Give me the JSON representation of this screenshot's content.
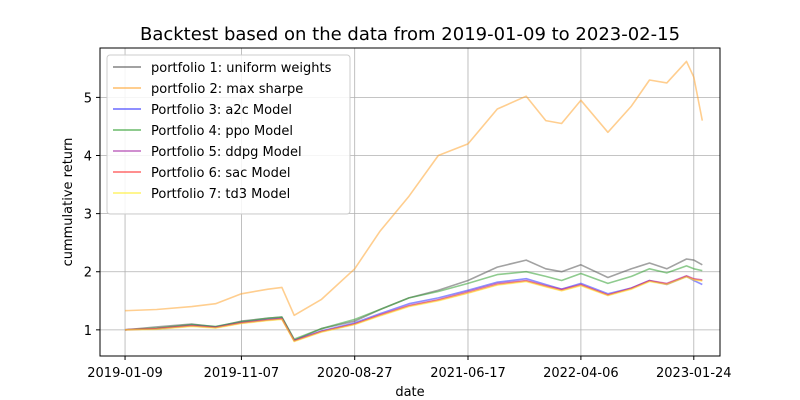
{
  "chart_data": {
    "type": "line",
    "title": "Backtest based on the data from 2019-01-09  to  2023-02-15",
    "xlabel": "date",
    "ylabel": "cummulative return",
    "x_ticks": [
      "2019-01-09",
      "2019-11-07",
      "2020-08-27",
      "2021-06-17",
      "2022-04-06",
      "2023-01-24"
    ],
    "xlim": [
      "2018-11-05",
      "2023-04-02"
    ],
    "ylim": [
      0.55,
      5.85
    ],
    "y_ticks": [
      1,
      2,
      3,
      4,
      5
    ],
    "grid": true,
    "legend_position": "top-left",
    "dates": [
      "2019-01-09",
      "2019-04-01",
      "2019-07-01",
      "2019-09-01",
      "2019-11-07",
      "2020-01-15",
      "2020-02-20",
      "2020-03-23",
      "2020-06-01",
      "2020-08-27",
      "2020-11-01",
      "2021-01-15",
      "2021-04-01",
      "2021-06-17",
      "2021-09-01",
      "2021-11-15",
      "2022-01-05",
      "2022-02-15",
      "2022-04-06",
      "2022-06-15",
      "2022-08-15",
      "2022-10-01",
      "2022-11-15",
      "2023-01-05",
      "2023-01-24",
      "2023-02-15"
    ],
    "series": [
      {
        "name": "portfolio 1: uniform weights",
        "color": "#555555",
        "values": [
          1.0,
          1.05,
          1.1,
          1.05,
          1.15,
          1.2,
          1.22,
          0.82,
          1.02,
          1.15,
          1.35,
          1.55,
          1.68,
          1.85,
          2.08,
          2.2,
          2.05,
          2.0,
          2.12,
          1.9,
          2.05,
          2.15,
          2.05,
          2.22,
          2.2,
          2.12
        ]
      },
      {
        "name": "portfolio 2: max sharpe",
        "color": "#FFA533",
        "values": [
          1.33,
          1.35,
          1.4,
          1.45,
          1.62,
          1.7,
          1.73,
          1.25,
          1.52,
          2.05,
          2.7,
          3.3,
          4.0,
          4.2,
          4.8,
          5.02,
          4.6,
          4.55,
          4.95,
          4.4,
          4.85,
          5.3,
          5.25,
          5.62,
          5.35,
          4.6
        ]
      },
      {
        "name": "Portfolio 3: a2c Model",
        "color": "#3333FF",
        "values": [
          1.0,
          1.02,
          1.08,
          1.05,
          1.13,
          1.18,
          1.2,
          0.82,
          0.98,
          1.12,
          1.28,
          1.45,
          1.55,
          1.68,
          1.82,
          1.88,
          1.78,
          1.7,
          1.8,
          1.62,
          1.72,
          1.85,
          1.78,
          1.92,
          1.85,
          1.78
        ]
      },
      {
        "name": "Portfolio 4: ppo Model",
        "color": "#33A033",
        "values": [
          1.0,
          1.03,
          1.09,
          1.06,
          1.14,
          1.2,
          1.22,
          0.84,
          1.02,
          1.18,
          1.35,
          1.55,
          1.66,
          1.8,
          1.95,
          2.0,
          1.92,
          1.85,
          1.97,
          1.8,
          1.92,
          2.05,
          1.98,
          2.1,
          2.05,
          2.02
        ]
      },
      {
        "name": "Portfolio 5: ddpg Model",
        "color": "#AA33AA",
        "values": [
          1.0,
          1.02,
          1.07,
          1.04,
          1.12,
          1.17,
          1.19,
          0.81,
          0.97,
          1.1,
          1.26,
          1.42,
          1.52,
          1.66,
          1.8,
          1.85,
          1.76,
          1.7,
          1.78,
          1.6,
          1.72,
          1.85,
          1.8,
          1.93,
          1.88,
          1.86
        ]
      },
      {
        "name": "Portfolio 6: sac Model",
        "color": "#FF3333",
        "values": [
          1.0,
          1.02,
          1.07,
          1.04,
          1.12,
          1.17,
          1.19,
          0.81,
          0.97,
          1.1,
          1.25,
          1.41,
          1.51,
          1.64,
          1.78,
          1.84,
          1.75,
          1.68,
          1.77,
          1.6,
          1.71,
          1.84,
          1.79,
          1.92,
          1.87,
          1.85
        ]
      },
      {
        "name": "Portfolio 7: td3 Model",
        "color": "#FFEE33",
        "values": [
          1.0,
          1.01,
          1.06,
          1.03,
          1.11,
          1.16,
          1.18,
          0.8,
          0.96,
          1.09,
          1.24,
          1.4,
          1.5,
          1.63,
          1.77,
          1.83,
          1.74,
          1.67,
          1.76,
          1.59,
          1.7,
          1.83,
          1.78,
          1.91,
          1.86,
          1.84
        ]
      }
    ]
  }
}
